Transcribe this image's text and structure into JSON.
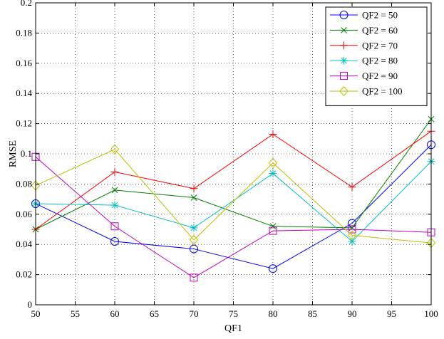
{
  "chart_data": {
    "type": "line",
    "xlabel": "QF1",
    "ylabel": "RMSE",
    "xlim": [
      50,
      100
    ],
    "ylim": [
      0,
      0.2
    ],
    "xticks": [
      "50",
      "55",
      "60",
      "65",
      "70",
      "75",
      "80",
      "85",
      "90",
      "95",
      "100"
    ],
    "yticks": [
      "0",
      "0.02",
      "0.04",
      "0.06",
      "0.08",
      "0.1",
      "0.12",
      "0.14",
      "0.16",
      "0.18",
      "0.2"
    ],
    "grid": true,
    "legend_position": "top-right",
    "x": [
      50,
      60,
      70,
      80,
      90,
      100
    ],
    "series": [
      {
        "name": "QF2 = 50",
        "color": "#0000ff",
        "marker": "circle",
        "values": [
          0.067,
          0.042,
          0.037,
          0.024,
          0.054,
          0.106
        ]
      },
      {
        "name": "QF2 = 60",
        "color": "#008000",
        "marker": "x",
        "values": [
          0.05,
          0.076,
          0.071,
          0.052,
          0.051,
          0.123
        ]
      },
      {
        "name": "QF2 = 70",
        "color": "#ff0000",
        "marker": "plus",
        "values": [
          0.05,
          0.088,
          0.077,
          0.113,
          0.078,
          0.115
        ]
      },
      {
        "name": "QF2 = 80",
        "color": "#00bfbf",
        "marker": "star",
        "values": [
          0.067,
          0.066,
          0.051,
          0.087,
          0.042,
          0.095
        ]
      },
      {
        "name": "QF2 = 90",
        "color": "#bf00bf",
        "marker": "square",
        "values": [
          0.098,
          0.052,
          0.018,
          0.049,
          0.05,
          0.048
        ]
      },
      {
        "name": "QF2 = 100",
        "color": "#bfbf00",
        "marker": "diamond",
        "values": [
          0.079,
          0.103,
          0.043,
          0.094,
          0.046,
          0.041
        ]
      }
    ]
  }
}
